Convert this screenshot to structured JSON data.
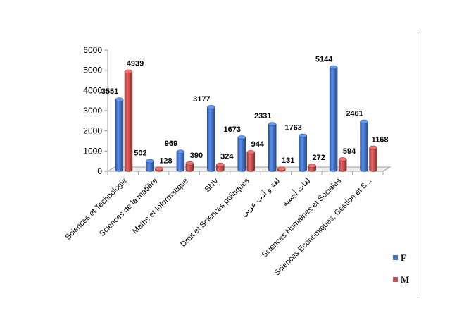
{
  "chart_data": {
    "type": "bar",
    "title": "",
    "xlabel": "",
    "ylabel": "",
    "ylim": [
      0,
      6000
    ],
    "yticks": [
      0,
      1000,
      2000,
      3000,
      4000,
      5000,
      6000
    ],
    "ytick_labels": [
      "0",
      "1000",
      "2000",
      "3000",
      "4000",
      "5000",
      "6000"
    ],
    "grid": false,
    "legend_position": "right",
    "categories": [
      "Sciences et Technologie",
      "Sciences de la matière",
      "Maths et Informatique",
      "SNV",
      "Droit et Sciences politiques",
      "لغة و أدب عربي",
      "لغات أجنبية",
      "Sciences Humaines et Sociales",
      "Sciences Economiques, Gestion et S..."
    ],
    "series": [
      {
        "name": "F",
        "color": "#4472C4",
        "values": [
          3551,
          502,
          969,
          3177,
          1673,
          2331,
          1763,
          5144,
          2461
        ]
      },
      {
        "name": "M",
        "color": "#C0504D",
        "values": [
          4939,
          128,
          390,
          324,
          944,
          131,
          272,
          594,
          1168
        ]
      }
    ]
  }
}
